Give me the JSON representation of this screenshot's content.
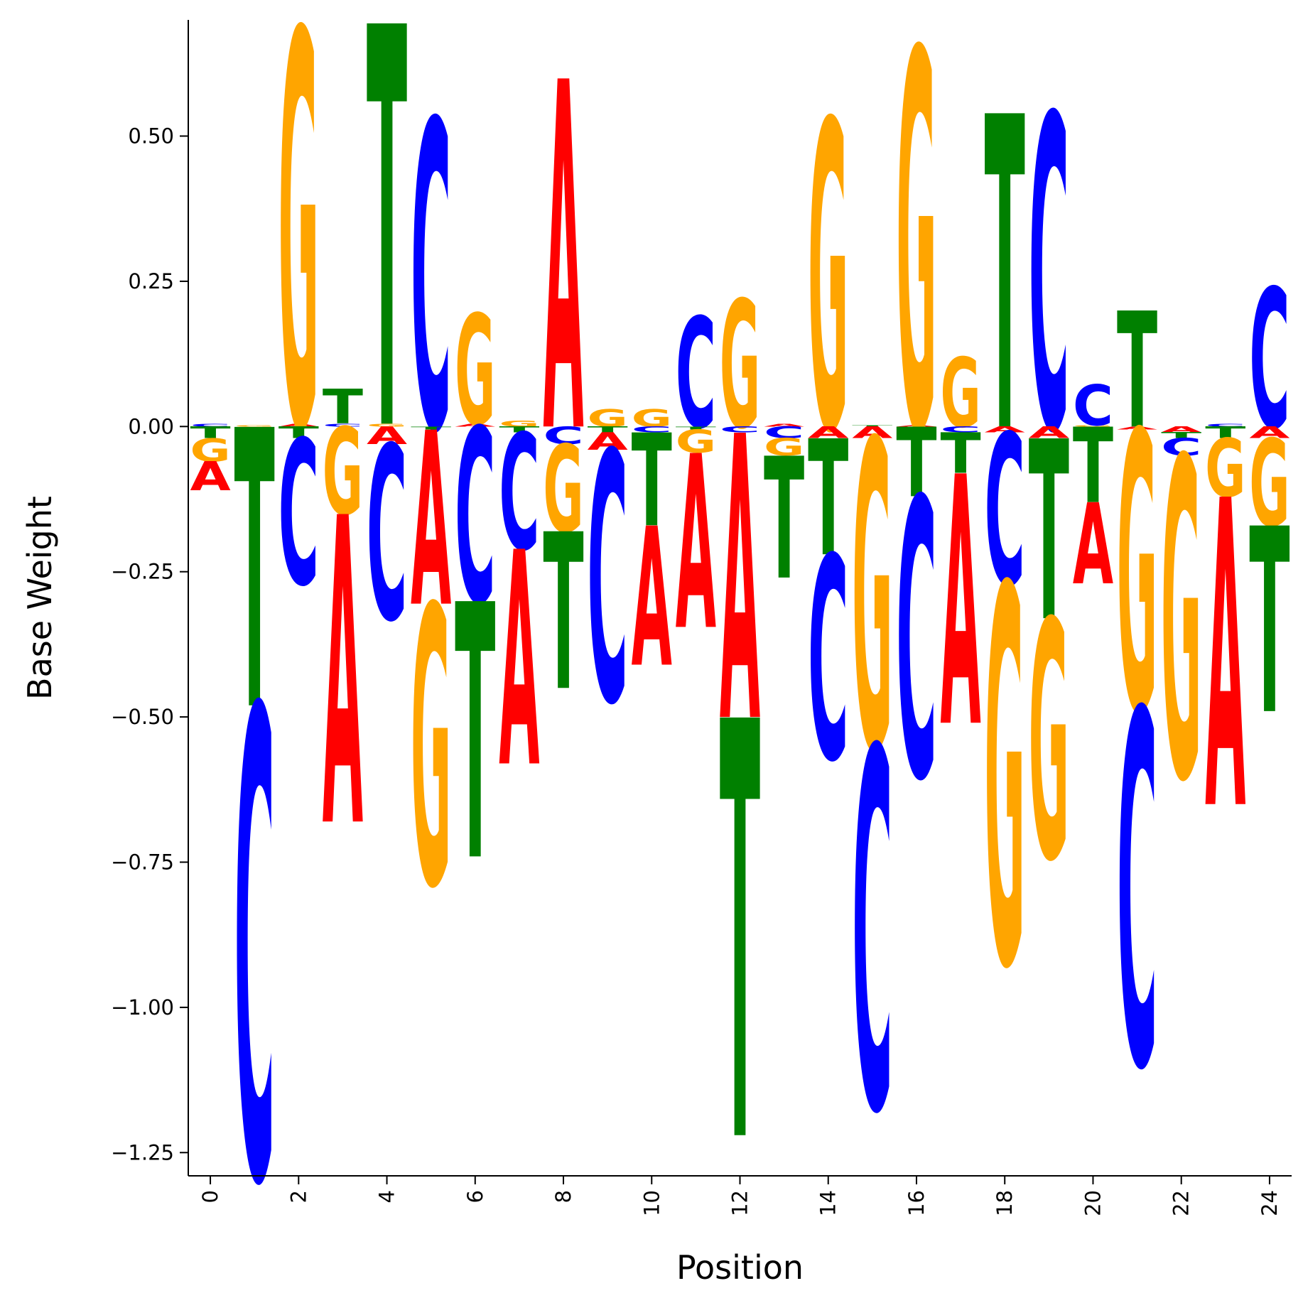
{
  "chart_data": {
    "type": "sequence-logo",
    "xlabel": "Position",
    "ylabel": "Base Weight",
    "xlim": [
      -0.5,
      24.5
    ],
    "ylim": [
      -1.29,
      0.7
    ],
    "xticks": [
      "0",
      "2",
      "4",
      "6",
      "8",
      "10",
      "12",
      "14",
      "16",
      "18",
      "20",
      "22",
      "24"
    ],
    "yticks": [
      "−1.25",
      "−1.00",
      "−0.75",
      "−0.50",
      "−0.25",
      "0.00",
      "0.25",
      "0.50"
    ],
    "colors": {
      "A": "#ff0000",
      "C": "#0000ff",
      "G": "#ffa500",
      "T": "#008000"
    },
    "positions": [
      {
        "pos": 0,
        "weights": {
          "A": -0.05,
          "C": 0.005,
          "G": -0.04,
          "T": -0.02
        }
      },
      {
        "pos": 1,
        "weights": {
          "A": 0.0,
          "C": -0.81,
          "G": 0.002,
          "T": -0.48
        }
      },
      {
        "pos": 2,
        "weights": {
          "A": 0.005,
          "C": -0.25,
          "G": 0.68,
          "T": -0.02
        }
      },
      {
        "pos": 3,
        "weights": {
          "A": -0.53,
          "C": 0.005,
          "G": -0.15,
          "T": 0.06
        }
      },
      {
        "pos": 4,
        "weights": {
          "A": -0.03,
          "C": -0.3,
          "G": 0.005,
          "T": 0.69
        }
      },
      {
        "pos": 5,
        "weights": {
          "A": -0.3,
          "C": 0.53,
          "G": -0.48,
          "T": -0.005
        }
      },
      {
        "pos": 6,
        "weights": {
          "A": 0.005,
          "C": -0.3,
          "G": 0.19,
          "T": -0.44
        }
      },
      {
        "pos": 7,
        "weights": {
          "A": -0.37,
          "C": -0.2,
          "G": 0.01,
          "T": -0.01
        }
      },
      {
        "pos": 8,
        "weights": {
          "A": 0.6,
          "C": -0.03,
          "G": -0.15,
          "T": -0.27
        }
      },
      {
        "pos": 9,
        "weights": {
          "A": -0.03,
          "C": -0.43,
          "G": 0.03,
          "T": -0.01
        }
      },
      {
        "pos": 10,
        "weights": {
          "A": -0.24,
          "C": -0.01,
          "G": 0.03,
          "T": -0.16
        }
      },
      {
        "pos": 11,
        "weights": {
          "A": -0.3,
          "C": 0.19,
          "G": -0.04,
          "T": -0.005
        }
      },
      {
        "pos": 12,
        "weights": {
          "A": -0.49,
          "C": -0.01,
          "G": 0.22,
          "T": -0.72
        }
      },
      {
        "pos": 13,
        "weights": {
          "A": 0.005,
          "C": -0.02,
          "G": -0.03,
          "T": -0.21
        }
      },
      {
        "pos": 14,
        "weights": {
          "A": -0.02,
          "C": -0.35,
          "G": 0.53,
          "T": -0.2
        }
      },
      {
        "pos": 15,
        "weights": {
          "A": -0.02,
          "C": -0.62,
          "G": -0.53,
          "T": 0.002
        }
      },
      {
        "pos": 16,
        "weights": {
          "A": 0.002,
          "C": -0.48,
          "G": 0.65,
          "T": -0.12
        }
      },
      {
        "pos": 17,
        "weights": {
          "A": -0.43,
          "C": -0.01,
          "G": 0.12,
          "T": -0.07
        }
      },
      {
        "pos": 18,
        "weights": {
          "A": -0.01,
          "C": -0.26,
          "G": -0.65,
          "T": 0.54
        }
      },
      {
        "pos": 19,
        "weights": {
          "A": -0.02,
          "C": 0.54,
          "G": -0.41,
          "T": -0.31
        }
      },
      {
        "pos": 20,
        "weights": {
          "A": -0.14,
          "C": 0.07,
          "G": 0.002,
          "T": -0.13
        }
      },
      {
        "pos": 21,
        "weights": {
          "A": -0.005,
          "C": -0.61,
          "G": -0.48,
          "T": 0.2
        }
      },
      {
        "pos": 22,
        "weights": {
          "A": -0.01,
          "C": -0.03,
          "G": -0.55,
          "T": -0.01
        }
      },
      {
        "pos": 23,
        "weights": {
          "A": -0.53,
          "C": 0.005,
          "G": -0.1,
          "T": -0.02
        }
      },
      {
        "pos": 24,
        "weights": {
          "A": -0.02,
          "C": 0.24,
          "G": -0.15,
          "T": -0.32
        }
      }
    ]
  }
}
